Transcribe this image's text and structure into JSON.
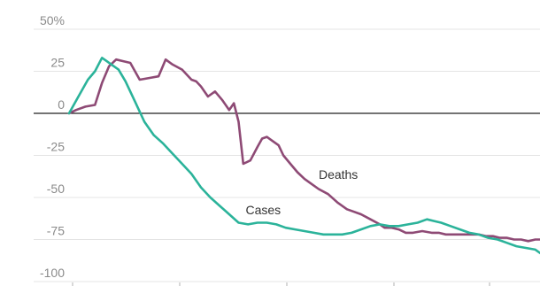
{
  "chart_data": {
    "type": "line",
    "ylim": [
      -100,
      50
    ],
    "y_ticks": [
      {
        "value": 50,
        "label": "50%"
      },
      {
        "value": 25,
        "label": "25"
      },
      {
        "value": 0,
        "label": "0"
      },
      {
        "value": -25,
        "label": "-25"
      },
      {
        "value": -50,
        "label": "-50"
      },
      {
        "value": -75,
        "label": "-75"
      },
      {
        "value": -100,
        "label": "-100"
      }
    ],
    "xlim": [
      0,
      100
    ],
    "grid": true,
    "series": [
      {
        "name": "Deaths",
        "color": "#8e4a75",
        "label_at": {
          "x": 53,
          "y": -39
        },
        "x": [
          0,
          1.5,
          3.5,
          5.5,
          7,
          8.5,
          10,
          11.5,
          13,
          15,
          17,
          19,
          20.5,
          22,
          24,
          26,
          27,
          28,
          29.5,
          31,
          32.5,
          34,
          35,
          36,
          37,
          38.5,
          40,
          41,
          42,
          43.5,
          44.5,
          45.5,
          47,
          48.5,
          50,
          51.5,
          53,
          55,
          57,
          59,
          60,
          62,
          64,
          66,
          67,
          68.5,
          70,
          71.5,
          73,
          75,
          77,
          78.5,
          80,
          82,
          84,
          85.5,
          87,
          88.5,
          90,
          91.5,
          93,
          94.5,
          96,
          97.5,
          99,
          100
        ],
        "y": [
          0,
          2,
          4,
          5,
          18,
          28,
          32,
          31,
          30,
          20,
          21,
          22,
          32,
          29,
          26,
          20,
          19,
          16,
          10,
          13,
          8,
          2,
          6,
          -5,
          -30,
          -28,
          -20,
          -15,
          -14,
          -17,
          -19,
          -25,
          -30,
          -35,
          -39,
          -42,
          -45,
          -48,
          -53,
          -57,
          -58,
          -60,
          -63,
          -66,
          -68,
          -68,
          -69,
          -71,
          -71,
          -70,
          -71,
          -71,
          -72,
          -72,
          -72,
          -72,
          -72,
          -73,
          -73,
          -74,
          -74,
          -75,
          -75,
          -76,
          -75,
          -75
        ]
      },
      {
        "name": "Cases",
        "color": "#2bb39a",
        "label_at": {
          "x": 37.5,
          "y": -60
        },
        "x": [
          0,
          2,
          4,
          5.5,
          7,
          8,
          9,
          10.5,
          12,
          14,
          16,
          18,
          20,
          22,
          24,
          26,
          28,
          30,
          32,
          34,
          36,
          38,
          40,
          42,
          44,
          46,
          48,
          50,
          52,
          54,
          56,
          58,
          60,
          62,
          64,
          66,
          68,
          70,
          72,
          74,
          76,
          77.5,
          79,
          81,
          83,
          85,
          87,
          89,
          91,
          93,
          95,
          97,
          99,
          100
        ],
        "y": [
          0,
          10,
          20,
          25,
          33,
          31,
          29,
          26,
          19,
          7,
          -5,
          -13,
          -18,
          -24,
          -30,
          -36,
          -44,
          -50,
          -55,
          -60,
          -65,
          -66,
          -65,
          -65,
          -66,
          -68,
          -69,
          -70,
          -71,
          -72,
          -72,
          -72,
          -71,
          -69,
          -67,
          -66,
          -67,
          -67,
          -66,
          -65,
          -63,
          -64,
          -65,
          -67,
          -69,
          -71,
          -72,
          -74,
          -75,
          -77,
          -79,
          -80,
          -81,
          -83
        ]
      }
    ]
  }
}
